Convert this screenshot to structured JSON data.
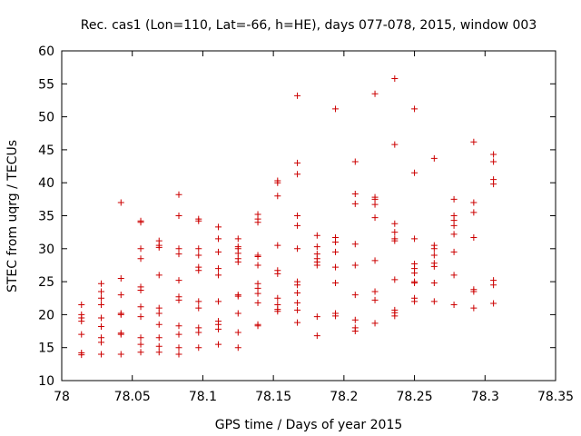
{
  "chart_data": {
    "type": "scatter",
    "title": "Rec. cas1 (Lon=110, Lat=-66, h=HE), days 077-078, 2015, window 003",
    "xlabel": "GPS time / Days of year 2015",
    "ylabel": "STEC from uqrg / TECUs",
    "xlim": [
      78,
      78.35
    ],
    "ylim": [
      10,
      60
    ],
    "x_ticks": [
      "78",
      "78.05",
      "78.1",
      "78.15",
      "78.2",
      "78.25",
      "78.3",
      "78.35"
    ],
    "y_ticks": [
      "10",
      "15",
      "20",
      "25",
      "30",
      "35",
      "40",
      "45",
      "50",
      "55",
      "60"
    ],
    "grid": false,
    "marker": "+",
    "color": "#cc0000",
    "series": [
      {
        "name": "STEC",
        "points": [
          [
            78.014,
            21.5
          ],
          [
            78.014,
            20.0
          ],
          [
            78.014,
            19.5
          ],
          [
            78.014,
            19.0
          ],
          [
            78.014,
            17.0
          ],
          [
            78.014,
            14.2
          ],
          [
            78.014,
            13.9
          ],
          [
            78.028,
            24.7
          ],
          [
            78.028,
            23.5
          ],
          [
            78.028,
            22.5
          ],
          [
            78.028,
            21.5
          ],
          [
            78.028,
            19.5
          ],
          [
            78.028,
            18.2
          ],
          [
            78.028,
            16.5
          ],
          [
            78.028,
            15.8
          ],
          [
            78.028,
            14.0
          ],
          [
            78.042,
            37.0
          ],
          [
            78.042,
            25.5
          ],
          [
            78.042,
            23.0
          ],
          [
            78.042,
            20.2
          ],
          [
            78.042,
            20.0
          ],
          [
            78.042,
            17.2
          ],
          [
            78.042,
            17.0
          ],
          [
            78.042,
            14.0
          ],
          [
            78.056,
            34.2
          ],
          [
            78.056,
            34.0
          ],
          [
            78.056,
            30.0
          ],
          [
            78.056,
            28.5
          ],
          [
            78.056,
            24.2
          ],
          [
            78.056,
            23.7
          ],
          [
            78.056,
            21.2
          ],
          [
            78.056,
            19.7
          ],
          [
            78.056,
            16.5
          ],
          [
            78.056,
            15.5
          ],
          [
            78.056,
            14.3
          ],
          [
            78.069,
            31.2
          ],
          [
            78.069,
            30.5
          ],
          [
            78.069,
            30.2
          ],
          [
            78.069,
            26.0
          ],
          [
            78.069,
            21.0
          ],
          [
            78.069,
            20.2
          ],
          [
            78.069,
            18.5
          ],
          [
            78.069,
            16.5
          ],
          [
            78.069,
            15.2
          ],
          [
            78.069,
            14.3
          ],
          [
            78.083,
            38.2
          ],
          [
            78.083,
            35.0
          ],
          [
            78.083,
            30.0
          ],
          [
            78.083,
            29.2
          ],
          [
            78.083,
            25.2
          ],
          [
            78.083,
            22.7
          ],
          [
            78.083,
            22.2
          ],
          [
            78.083,
            18.3
          ],
          [
            78.083,
            17.0
          ],
          [
            78.083,
            15.0
          ],
          [
            78.083,
            14.0
          ],
          [
            78.097,
            34.5
          ],
          [
            78.097,
            34.2
          ],
          [
            78.097,
            30.0
          ],
          [
            78.097,
            29.0
          ],
          [
            78.097,
            27.2
          ],
          [
            78.097,
            26.7
          ],
          [
            78.097,
            22.0
          ],
          [
            78.097,
            21.0
          ],
          [
            78.097,
            18.0
          ],
          [
            78.097,
            17.3
          ],
          [
            78.097,
            15.0
          ],
          [
            78.111,
            33.3
          ],
          [
            78.111,
            31.5
          ],
          [
            78.111,
            29.5
          ],
          [
            78.111,
            27.0
          ],
          [
            78.111,
            26.0
          ],
          [
            78.111,
            22.0
          ],
          [
            78.111,
            19.0
          ],
          [
            78.111,
            18.5
          ],
          [
            78.111,
            17.8
          ],
          [
            78.111,
            15.5
          ],
          [
            78.125,
            31.5
          ],
          [
            78.125,
            30.3
          ],
          [
            78.125,
            30.0
          ],
          [
            78.125,
            29.3
          ],
          [
            78.125,
            28.5
          ],
          [
            78.125,
            28.0
          ],
          [
            78.125,
            23.0
          ],
          [
            78.125,
            22.8
          ],
          [
            78.125,
            20.2
          ],
          [
            78.125,
            17.3
          ],
          [
            78.125,
            15.0
          ],
          [
            78.139,
            35.2
          ],
          [
            78.139,
            34.5
          ],
          [
            78.139,
            34.0
          ],
          [
            78.139,
            29.0
          ],
          [
            78.139,
            28.8
          ],
          [
            78.139,
            27.5
          ],
          [
            78.139,
            24.7
          ],
          [
            78.139,
            24.0
          ],
          [
            78.139,
            23.2
          ],
          [
            78.139,
            21.8
          ],
          [
            78.139,
            18.5
          ],
          [
            78.139,
            18.3
          ],
          [
            78.153,
            40.3
          ],
          [
            78.153,
            40.0
          ],
          [
            78.153,
            38.0
          ],
          [
            78.153,
            30.5
          ],
          [
            78.153,
            26.7
          ],
          [
            78.153,
            26.2
          ],
          [
            78.153,
            22.5
          ],
          [
            78.153,
            21.5
          ],
          [
            78.153,
            20.8
          ],
          [
            78.153,
            20.5
          ],
          [
            78.167,
            53.2
          ],
          [
            78.167,
            43.0
          ],
          [
            78.167,
            41.3
          ],
          [
            78.167,
            35.0
          ],
          [
            78.167,
            33.5
          ],
          [
            78.167,
            30.0
          ],
          [
            78.167,
            25.0
          ],
          [
            78.167,
            24.5
          ],
          [
            78.167,
            23.3
          ],
          [
            78.167,
            21.8
          ],
          [
            78.167,
            20.7
          ],
          [
            78.167,
            18.8
          ],
          [
            78.181,
            32.0
          ],
          [
            78.181,
            30.3
          ],
          [
            78.181,
            29.2
          ],
          [
            78.181,
            28.5
          ],
          [
            78.181,
            28.0
          ],
          [
            78.181,
            27.5
          ],
          [
            78.181,
            19.7
          ],
          [
            78.181,
            16.8
          ],
          [
            78.194,
            51.2
          ],
          [
            78.194,
            31.7
          ],
          [
            78.194,
            31.0
          ],
          [
            78.194,
            29.5
          ],
          [
            78.194,
            27.2
          ],
          [
            78.194,
            24.8
          ],
          [
            78.194,
            20.2
          ],
          [
            78.194,
            19.8
          ],
          [
            78.208,
            43.2
          ],
          [
            78.208,
            38.3
          ],
          [
            78.208,
            36.8
          ],
          [
            78.208,
            30.7
          ],
          [
            78.208,
            27.5
          ],
          [
            78.208,
            23.0
          ],
          [
            78.208,
            19.2
          ],
          [
            78.208,
            18.0
          ],
          [
            78.208,
            17.5
          ],
          [
            78.222,
            53.5
          ],
          [
            78.222,
            37.8
          ],
          [
            78.222,
            37.5
          ],
          [
            78.222,
            36.7
          ],
          [
            78.222,
            34.7
          ],
          [
            78.222,
            28.2
          ],
          [
            78.222,
            23.5
          ],
          [
            78.222,
            22.2
          ],
          [
            78.222,
            18.7
          ],
          [
            78.236,
            55.8
          ],
          [
            78.236,
            45.8
          ],
          [
            78.236,
            33.8
          ],
          [
            78.236,
            32.5
          ],
          [
            78.236,
            31.5
          ],
          [
            78.236,
            31.2
          ],
          [
            78.236,
            25.3
          ],
          [
            78.236,
            20.7
          ],
          [
            78.236,
            20.3
          ],
          [
            78.236,
            19.8
          ],
          [
            78.25,
            51.2
          ],
          [
            78.25,
            41.5
          ],
          [
            78.25,
            31.5
          ],
          [
            78.25,
            27.7
          ],
          [
            78.25,
            27.0
          ],
          [
            78.25,
            26.3
          ],
          [
            78.25,
            25.0
          ],
          [
            78.25,
            24.8
          ],
          [
            78.25,
            22.5
          ],
          [
            78.25,
            22.0
          ],
          [
            78.264,
            43.7
          ],
          [
            78.264,
            30.5
          ],
          [
            78.264,
            30.0
          ],
          [
            78.264,
            29.0
          ],
          [
            78.264,
            27.8
          ],
          [
            78.264,
            27.3
          ],
          [
            78.264,
            24.8
          ],
          [
            78.264,
            22.0
          ],
          [
            78.278,
            37.5
          ],
          [
            78.278,
            35.0
          ],
          [
            78.278,
            34.3
          ],
          [
            78.278,
            33.5
          ],
          [
            78.278,
            32.2
          ],
          [
            78.278,
            29.5
          ],
          [
            78.278,
            26.0
          ],
          [
            78.278,
            21.5
          ],
          [
            78.292,
            46.2
          ],
          [
            78.292,
            37.0
          ],
          [
            78.292,
            35.5
          ],
          [
            78.292,
            31.7
          ],
          [
            78.292,
            23.8
          ],
          [
            78.292,
            23.5
          ],
          [
            78.292,
            21.0
          ],
          [
            78.306,
            44.3
          ],
          [
            78.306,
            43.2
          ],
          [
            78.306,
            40.5
          ],
          [
            78.306,
            39.8
          ],
          [
            78.306,
            25.2
          ],
          [
            78.306,
            24.5
          ],
          [
            78.306,
            21.7
          ]
        ]
      }
    ]
  }
}
